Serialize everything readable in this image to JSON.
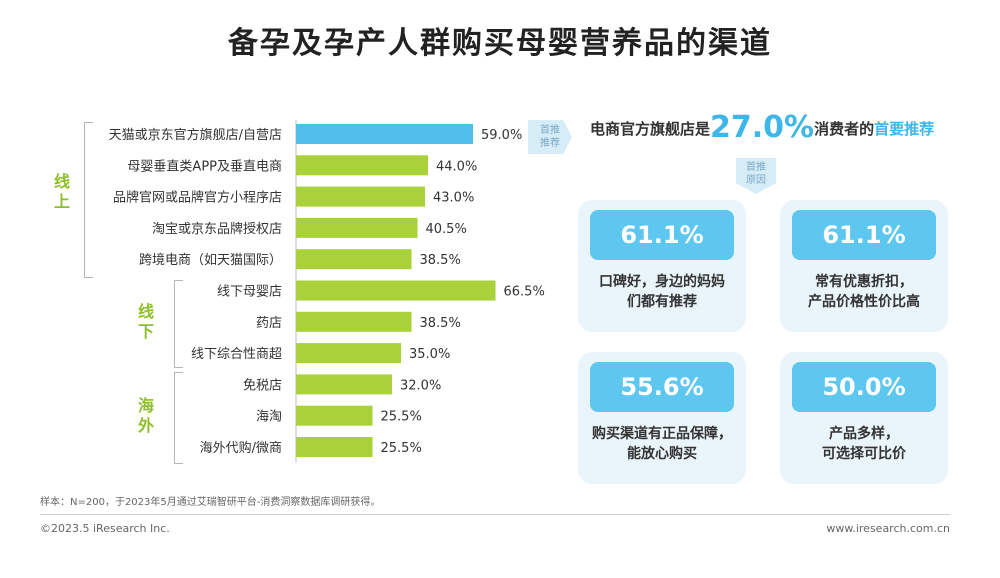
{
  "title": "备孕及孕产人群购买母婴营养品的渠道",
  "groups": [
    {
      "name_line1": "线",
      "name_line2": "上"
    },
    {
      "name_line1": "线",
      "name_line2": "下"
    },
    {
      "name_line1": "海",
      "name_line2": "外"
    }
  ],
  "chart_data": {
    "type": "bar",
    "orientation": "horizontal",
    "categories": [
      "天猫或京东官方旗舰店/自营店",
      "母婴垂直类APP及垂直电商",
      "品牌官网或品牌官方小程序店",
      "淘宝或京东品牌授权店",
      "跨境电商（如天猫国际）",
      "线下母婴店",
      "药店",
      "线下综合性商超",
      "免税店",
      "海淘",
      "海外代购/微商"
    ],
    "values": [
      59.0,
      44.0,
      43.0,
      40.5,
      38.5,
      66.5,
      38.5,
      35.0,
      32.0,
      25.5,
      25.5
    ],
    "value_labels": [
      "59.0%",
      "44.0%",
      "43.0%",
      "40.5%",
      "38.5%",
      "66.5%",
      "38.5%",
      "35.0%",
      "32.0%",
      "25.5%",
      "25.5%"
    ],
    "group_of_category": [
      0,
      0,
      0,
      0,
      0,
      1,
      1,
      1,
      2,
      2,
      2
    ],
    "unit": "%",
    "highlight_index": 0,
    "colors": {
      "highlight": "#4fbfe9",
      "default": "#a9d139"
    }
  },
  "tag_first": {
    "line1": "首推",
    "line2": "推荐"
  },
  "tag_reason": {
    "line1": "首推",
    "line2": "原因"
  },
  "headline": {
    "prefix": "电商官方旗舰店是",
    "value": "27.0%",
    "middle": "消费者的",
    "emphasis": "首要推荐"
  },
  "reasons": [
    {
      "pct": "61.1%",
      "line1": "口碑好，身边的妈妈",
      "line2": "们都有推荐"
    },
    {
      "pct": "61.1%",
      "line1": "常有优惠折扣，",
      "line2": "产品价格性价比高"
    },
    {
      "pct": "55.6%",
      "line1": "购买渠道有正品保障，",
      "line2": "能放心购买"
    },
    {
      "pct": "50.0%",
      "line1": "产品多样，",
      "line2": "可选择可比价"
    }
  ],
  "note": "样本：N=200，于2023年5月通过艾瑞智研平台-消费洞察数据库调研获得。",
  "footer_left": "©2023.5 iResearch Inc.",
  "footer_right": "www.iresearch.com.cn",
  "accent": "#3fb6e8",
  "group_color": "#8fbf2b"
}
